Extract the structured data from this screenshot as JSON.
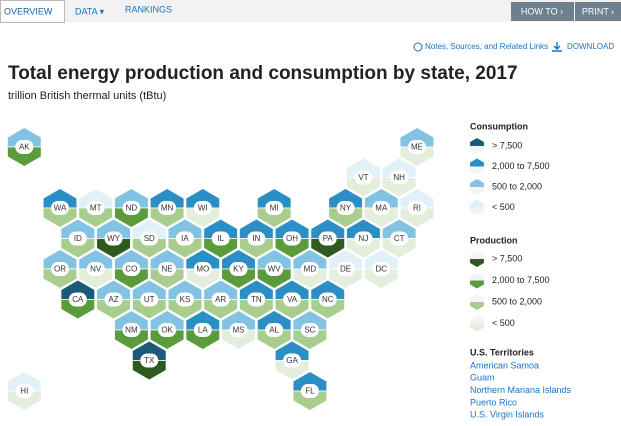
{
  "nav": {
    "tabs": [
      "OVERVIEW",
      "DATA ▾",
      "RANKINGS"
    ],
    "buttons": [
      "HOW TO ›",
      "PRINT ›"
    ]
  },
  "links": {
    "notes": "Notes, Sources, and Related Links",
    "download": "DOWNLOAD"
  },
  "title": "Total energy production and consumption by state, 2017",
  "subtitle": "trillion British thermal units (tBtu)",
  "legend": {
    "consumption": {
      "title": "Consumption",
      "levels": [
        "> 7,500",
        "2,000 to 7,500",
        "500 to 2,000",
        "< 500"
      ],
      "colors": [
        "#1b5a78",
        "#2b8fc6",
        "#82c3e3",
        "#e2f0f7"
      ]
    },
    "production": {
      "title": "Production",
      "levels": [
        "> 7,500",
        "2,000 to 7,500",
        "500 to 2,000",
        "< 500"
      ],
      "colors": [
        "#2e5a1f",
        "#5b9b3b",
        "#a9cd8f",
        "#e3efdc"
      ]
    }
  },
  "territories": {
    "title": "U.S. Territories",
    "items": [
      "American Samoa",
      "Guam",
      "Northern Mariana Islands",
      "Puerto Rico",
      "U.S. Virgin Islands"
    ]
  },
  "states": [
    {
      "label": "AK",
      "consumption": "500 to 2,000",
      "production": "2,000 to 7,500"
    },
    {
      "label": "ME",
      "consumption": "500 to 2,000",
      "production": "< 500"
    },
    {
      "label": "VT",
      "consumption": "< 500",
      "production": "< 500"
    },
    {
      "label": "NH",
      "consumption": "< 500",
      "production": "< 500"
    },
    {
      "label": "WA",
      "consumption": "2,000 to 7,500",
      "production": "500 to 2,000"
    },
    {
      "label": "MT",
      "consumption": "< 500",
      "production": "500 to 2,000"
    },
    {
      "label": "ND",
      "consumption": "500 to 2,000",
      "production": "2,000 to 7,500"
    },
    {
      "label": "MN",
      "consumption": "2,000 to 7,500",
      "production": "500 to 2,000"
    },
    {
      "label": "WI",
      "consumption": "2,000 to 7,500",
      "production": "< 500"
    },
    {
      "label": "MI",
      "consumption": "2,000 to 7,500",
      "production": "500 to 2,000"
    },
    {
      "label": "NY",
      "consumption": "2,000 to 7,500",
      "production": "500 to 2,000"
    },
    {
      "label": "MA",
      "consumption": "500 to 2,000",
      "production": "< 500"
    },
    {
      "label": "RI",
      "consumption": "< 500",
      "production": "< 500"
    },
    {
      "label": "ID",
      "consumption": "500 to 2,000",
      "production": "500 to 2,000"
    },
    {
      "label": "WY",
      "consumption": "500 to 2,000",
      "production": "> 7,500"
    },
    {
      "label": "SD",
      "consumption": "< 500",
      "production": "500 to 2,000"
    },
    {
      "label": "IA",
      "consumption": "500 to 2,000",
      "production": "500 to 2,000"
    },
    {
      "label": "IL",
      "consumption": "2,000 to 7,500",
      "production": "2,000 to 7,500"
    },
    {
      "label": "IN",
      "consumption": "2,000 to 7,500",
      "production": "500 to 2,000"
    },
    {
      "label": "OH",
      "consumption": "2,000 to 7,500",
      "production": "2,000 to 7,500"
    },
    {
      "label": "PA",
      "consumption": "2,000 to 7,500",
      "production": "> 7,500"
    },
    {
      "label": "NJ",
      "consumption": "2,000 to 7,500",
      "production": "< 500"
    },
    {
      "label": "CT",
      "consumption": "500 to 2,000",
      "production": "< 500"
    },
    {
      "label": "OR",
      "consumption": "500 to 2,000",
      "production": "500 to 2,000"
    },
    {
      "label": "NV",
      "consumption": "500 to 2,000",
      "production": "< 500"
    },
    {
      "label": "CO",
      "consumption": "500 to 2,000",
      "production": "2,000 to 7,500"
    },
    {
      "label": "NE",
      "consumption": "500 to 2,000",
      "production": "500 to 2,000"
    },
    {
      "label": "MO",
      "consumption": "2,000 to 7,500",
      "production": "< 500"
    },
    {
      "label": "KY",
      "consumption": "2,000 to 7,500",
      "production": "2,000 to 7,500"
    },
    {
      "label": "WV",
      "consumption": "500 to 2,000",
      "production": "2,000 to 7,500"
    },
    {
      "label": "MD",
      "consumption": "500 to 2,000",
      "production": "< 500"
    },
    {
      "label": "DE",
      "consumption": "< 500",
      "production": "< 500"
    },
    {
      "label": "DC",
      "consumption": "< 500",
      "production": "< 500"
    },
    {
      "label": "CA",
      "consumption": "> 7,500",
      "production": "2,000 to 7,500"
    },
    {
      "label": "AZ",
      "consumption": "500 to 2,000",
      "production": "500 to 2,000"
    },
    {
      "label": "UT",
      "consumption": "500 to 2,000",
      "production": "500 to 2,000"
    },
    {
      "label": "KS",
      "consumption": "500 to 2,000",
      "production": "500 to 2,000"
    },
    {
      "label": "AR",
      "consumption": "500 to 2,000",
      "production": "500 to 2,000"
    },
    {
      "label": "TN",
      "consumption": "2,000 to 7,500",
      "production": "500 to 2,000"
    },
    {
      "label": "VA",
      "consumption": "2,000 to 7,500",
      "production": "500 to 2,000"
    },
    {
      "label": "NC",
      "consumption": "2,000 to 7,500",
      "production": "500 to 2,000"
    },
    {
      "label": "NM",
      "consumption": "500 to 2,000",
      "production": "2,000 to 7,500"
    },
    {
      "label": "OK",
      "consumption": "500 to 2,000",
      "production": "2,000 to 7,500"
    },
    {
      "label": "LA",
      "consumption": "2,000 to 7,500",
      "production": "2,000 to 7,500"
    },
    {
      "label": "MS",
      "consumption": "500 to 2,000",
      "production": "< 500"
    },
    {
      "label": "AL",
      "consumption": "2,000 to 7,500",
      "production": "500 to 2,000"
    },
    {
      "label": "SC",
      "consumption": "500 to 2,000",
      "production": "500 to 2,000"
    },
    {
      "label": "TX",
      "consumption": "> 7,500",
      "production": "> 7,500"
    },
    {
      "label": "GA",
      "consumption": "2,000 to 7,500",
      "production": "< 500"
    },
    {
      "label": "HI",
      "consumption": "< 500",
      "production": "< 500"
    },
    {
      "label": "FL",
      "consumption": "2,000 to 7,500",
      "production": "500 to 2,000"
    }
  ]
}
